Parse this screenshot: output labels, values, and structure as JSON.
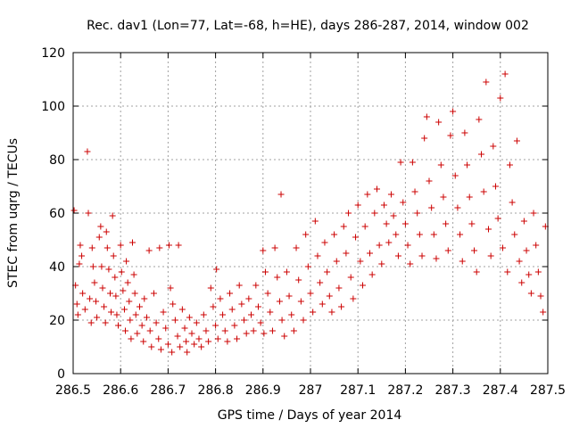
{
  "chart_data": {
    "type": "scatter",
    "title": "Rec. dav1 (Lon=77, Lat=-68, h=HE), days 286-287, 2014, window 002",
    "xlabel": "GPS time / Days of year 2014",
    "ylabel": "STEC from uqrg / TECUs",
    "xlim": [
      286.5,
      287.5
    ],
    "ylim": [
      0,
      120
    ],
    "xticks": [
      286.5,
      286.6,
      286.7,
      286.8,
      286.9,
      287.0,
      287.1,
      287.2,
      287.3,
      287.4,
      287.5
    ],
    "xtick_labels": [
      "286.5",
      "286.6",
      "286.7",
      "286.8",
      "286.9",
      "287",
      "287.1",
      "287.2",
      "287.3",
      "287.4",
      "287.5"
    ],
    "yticks": [
      0,
      20,
      40,
      60,
      80,
      100,
      120
    ],
    "ytick_labels": [
      "0",
      "20",
      "40",
      "60",
      "80",
      "100",
      "120"
    ],
    "grid": true,
    "marker": "+",
    "color": "#cc0000",
    "series": [
      {
        "name": "",
        "points": [
          [
            286.502,
            61
          ],
          [
            286.505,
            33
          ],
          [
            286.508,
            26
          ],
          [
            286.51,
            22
          ],
          [
            286.513,
            41
          ],
          [
            286.515,
            48
          ],
          [
            286.518,
            44
          ],
          [
            286.52,
            30
          ],
          [
            286.525,
            24
          ],
          [
            286.53,
            83
          ],
          [
            286.532,
            60
          ],
          [
            286.535,
            28
          ],
          [
            286.538,
            19
          ],
          [
            286.54,
            47
          ],
          [
            286.542,
            40
          ],
          [
            286.545,
            34
          ],
          [
            286.548,
            27
          ],
          [
            286.55,
            21
          ],
          [
            286.555,
            51
          ],
          [
            286.558,
            55
          ],
          [
            286.56,
            40
          ],
          [
            286.562,
            32
          ],
          [
            286.565,
            25
          ],
          [
            286.568,
            19
          ],
          [
            286.57,
            53
          ],
          [
            286.572,
            47
          ],
          [
            286.575,
            39
          ],
          [
            286.578,
            30
          ],
          [
            286.58,
            23
          ],
          [
            286.583,
            59
          ],
          [
            286.585,
            44
          ],
          [
            286.588,
            36
          ],
          [
            286.59,
            29
          ],
          [
            286.592,
            22
          ],
          [
            286.595,
            18
          ],
          [
            286.6,
            48
          ],
          [
            286.602,
            38
          ],
          [
            286.605,
            31
          ],
          [
            286.608,
            24
          ],
          [
            286.61,
            16
          ],
          [
            286.612,
            42
          ],
          [
            286.615,
            34
          ],
          [
            286.618,
            27
          ],
          [
            286.62,
            20
          ],
          [
            286.622,
            13
          ],
          [
            286.625,
            49
          ],
          [
            286.628,
            37
          ],
          [
            286.63,
            30
          ],
          [
            286.632,
            22
          ],
          [
            286.635,
            15
          ],
          [
            286.64,
            25
          ],
          [
            286.645,
            18
          ],
          [
            286.648,
            12
          ],
          [
            286.65,
            28
          ],
          [
            286.655,
            21
          ],
          [
            286.66,
            46
          ],
          [
            286.662,
            16
          ],
          [
            286.665,
            10
          ],
          [
            286.67,
            30
          ],
          [
            286.675,
            19
          ],
          [
            286.68,
            13
          ],
          [
            286.682,
            47
          ],
          [
            286.685,
            9
          ],
          [
            286.69,
            23
          ],
          [
            286.695,
            17
          ],
          [
            286.7,
            11
          ],
          [
            286.702,
            48
          ],
          [
            286.705,
            32
          ],
          [
            286.708,
            8
          ],
          [
            286.71,
            26
          ],
          [
            286.715,
            20
          ],
          [
            286.72,
            14
          ],
          [
            286.722,
            48
          ],
          [
            286.725,
            10
          ],
          [
            286.73,
            24
          ],
          [
            286.735,
            17
          ],
          [
            286.738,
            12
          ],
          [
            286.74,
            8
          ],
          [
            286.745,
            21
          ],
          [
            286.75,
            15
          ],
          [
            286.755,
            11
          ],
          [
            286.76,
            19
          ],
          [
            286.765,
            13
          ],
          [
            286.77,
            10
          ],
          [
            286.775,
            22
          ],
          [
            286.78,
            16
          ],
          [
            286.785,
            12
          ],
          [
            286.79,
            32
          ],
          [
            286.795,
            25
          ],
          [
            286.8,
            18
          ],
          [
            286.802,
            39
          ],
          [
            286.805,
            13
          ],
          [
            286.81,
            28
          ],
          [
            286.815,
            22
          ],
          [
            286.82,
            16
          ],
          [
            286.825,
            12
          ],
          [
            286.83,
            30
          ],
          [
            286.835,
            24
          ],
          [
            286.84,
            18
          ],
          [
            286.845,
            13
          ],
          [
            286.85,
            33
          ],
          [
            286.855,
            26
          ],
          [
            286.86,
            20
          ],
          [
            286.865,
            15
          ],
          [
            286.87,
            28
          ],
          [
            286.875,
            22
          ],
          [
            286.88,
            16
          ],
          [
            286.885,
            33
          ],
          [
            286.89,
            25
          ],
          [
            286.895,
            19
          ],
          [
            286.9,
            46
          ],
          [
            286.902,
            15
          ],
          [
            286.905,
            38
          ],
          [
            286.91,
            30
          ],
          [
            286.915,
            23
          ],
          [
            286.92,
            16
          ],
          [
            286.925,
            47
          ],
          [
            286.93,
            36
          ],
          [
            286.935,
            27
          ],
          [
            286.938,
            67
          ],
          [
            286.94,
            20
          ],
          [
            286.945,
            14
          ],
          [
            286.95,
            38
          ],
          [
            286.955,
            29
          ],
          [
            286.96,
            22
          ],
          [
            286.965,
            16
          ],
          [
            286.97,
            47
          ],
          [
            286.975,
            35
          ],
          [
            286.98,
            27
          ],
          [
            286.985,
            20
          ],
          [
            286.99,
            52
          ],
          [
            286.995,
            40
          ],
          [
            287.0,
            30
          ],
          [
            287.005,
            23
          ],
          [
            287.01,
            57
          ],
          [
            287.015,
            44
          ],
          [
            287.02,
            34
          ],
          [
            287.025,
            26
          ],
          [
            287.03,
            49
          ],
          [
            287.035,
            38
          ],
          [
            287.04,
            29
          ],
          [
            287.045,
            23
          ],
          [
            287.05,
            52
          ],
          [
            287.055,
            42
          ],
          [
            287.06,
            32
          ],
          [
            287.065,
            25
          ],
          [
            287.07,
            55
          ],
          [
            287.075,
            45
          ],
          [
            287.08,
            60
          ],
          [
            287.085,
            36
          ],
          [
            287.09,
            28
          ],
          [
            287.095,
            51
          ],
          [
            287.1,
            63
          ],
          [
            287.105,
            42
          ],
          [
            287.11,
            33
          ],
          [
            287.115,
            55
          ],
          [
            287.12,
            67
          ],
          [
            287.125,
            45
          ],
          [
            287.13,
            37
          ],
          [
            287.135,
            60
          ],
          [
            287.14,
            69
          ],
          [
            287.145,
            48
          ],
          [
            287.15,
            41
          ],
          [
            287.155,
            63
          ],
          [
            287.16,
            56
          ],
          [
            287.165,
            49
          ],
          [
            287.17,
            67
          ],
          [
            287.175,
            59
          ],
          [
            287.18,
            52
          ],
          [
            287.185,
            44
          ],
          [
            287.19,
            79
          ],
          [
            287.195,
            64
          ],
          [
            287.2,
            56
          ],
          [
            287.205,
            48
          ],
          [
            287.21,
            41
          ],
          [
            287.215,
            79
          ],
          [
            287.22,
            68
          ],
          [
            287.225,
            60
          ],
          [
            287.23,
            52
          ],
          [
            287.235,
            44
          ],
          [
            287.24,
            88
          ],
          [
            287.245,
            96
          ],
          [
            287.25,
            72
          ],
          [
            287.255,
            62
          ],
          [
            287.26,
            52
          ],
          [
            287.265,
            43
          ],
          [
            287.27,
            94
          ],
          [
            287.275,
            78
          ],
          [
            287.28,
            66
          ],
          [
            287.285,
            56
          ],
          [
            287.29,
            46
          ],
          [
            287.295,
            89
          ],
          [
            287.3,
            98
          ],
          [
            287.305,
            74
          ],
          [
            287.31,
            62
          ],
          [
            287.315,
            52
          ],
          [
            287.32,
            42
          ],
          [
            287.325,
            90
          ],
          [
            287.33,
            78
          ],
          [
            287.335,
            66
          ],
          [
            287.34,
            56
          ],
          [
            287.345,
            46
          ],
          [
            287.35,
            38
          ],
          [
            287.355,
            95
          ],
          [
            287.36,
            82
          ],
          [
            287.365,
            68
          ],
          [
            287.37,
            109
          ],
          [
            287.375,
            54
          ],
          [
            287.38,
            44
          ],
          [
            287.385,
            85
          ],
          [
            287.39,
            70
          ],
          [
            287.395,
            58
          ],
          [
            287.4,
            103
          ],
          [
            287.405,
            47
          ],
          [
            287.41,
            112
          ],
          [
            287.415,
            38
          ],
          [
            287.42,
            78
          ],
          [
            287.425,
            64
          ],
          [
            287.43,
            52
          ],
          [
            287.435,
            87
          ],
          [
            287.44,
            42
          ],
          [
            287.445,
            34
          ],
          [
            287.45,
            57
          ],
          [
            287.455,
            46
          ],
          [
            287.46,
            37
          ],
          [
            287.465,
            30
          ],
          [
            287.47,
            60
          ],
          [
            287.475,
            48
          ],
          [
            287.48,
            38
          ],
          [
            287.485,
            29
          ],
          [
            287.49,
            23
          ],
          [
            287.495,
            55
          ]
        ]
      }
    ]
  }
}
